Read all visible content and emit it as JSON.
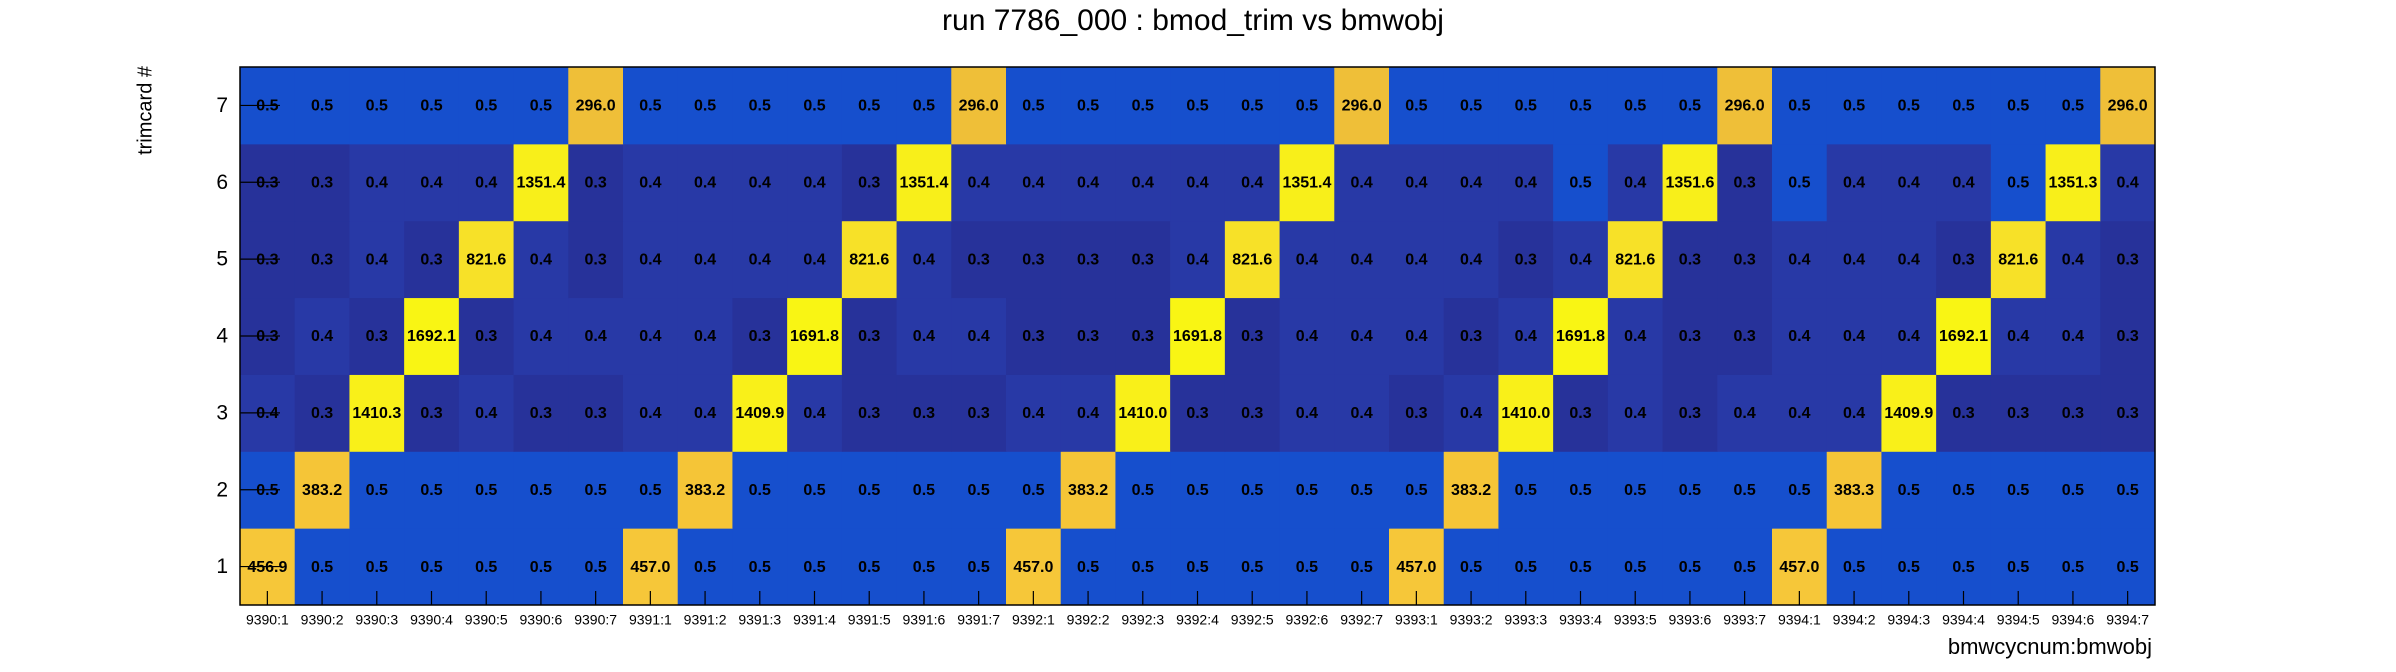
{
  "chart_data": {
    "type": "heatmap",
    "title": "run 7786_000 : bmod_trim vs bmwobj",
    "xlabel": "bmwcycnum:bmwobj",
    "ylabel": "trimcard #",
    "categories": [
      "9390:1",
      "9390:2",
      "9390:3",
      "9390:4",
      "9390:5",
      "9390:6",
      "9390:7",
      "9391:1",
      "9391:2",
      "9391:3",
      "9391:4",
      "9391:5",
      "9391:6",
      "9391:7",
      "9392:1",
      "9392:2",
      "9392:3",
      "9392:4",
      "9392:5",
      "9392:6",
      "9392:7",
      "9393:1",
      "9393:2",
      "9393:3",
      "9393:4",
      "9393:5",
      "9393:6",
      "9393:7",
      "9394:1",
      "9394:2",
      "9394:3",
      "9394:4",
      "9394:5",
      "9394:6",
      "9394:7"
    ],
    "y_categories": [
      1,
      2,
      3,
      4,
      5,
      6,
      7
    ],
    "values": [
      [
        456.9,
        0.5,
        0.5,
        0.5,
        0.5,
        0.5,
        0.5,
        457.0,
        0.5,
        0.5,
        0.5,
        0.5,
        0.5,
        0.5,
        457.0,
        0.5,
        0.5,
        0.5,
        0.5,
        0.5,
        0.5,
        457.0,
        0.5,
        0.5,
        0.5,
        0.5,
        0.5,
        0.5,
        457.0,
        0.5,
        0.5,
        0.5,
        0.5,
        0.5,
        0.5
      ],
      [
        0.5,
        383.2,
        0.5,
        0.5,
        0.5,
        0.5,
        0.5,
        0.5,
        383.2,
        0.5,
        0.5,
        0.5,
        0.5,
        0.5,
        0.5,
        383.2,
        0.5,
        0.5,
        0.5,
        0.5,
        0.5,
        0.5,
        383.2,
        0.5,
        0.5,
        0.5,
        0.5,
        0.5,
        0.5,
        383.3,
        0.5,
        0.5,
        0.5,
        0.5,
        0.5
      ],
      [
        0.4,
        0.3,
        1410.3,
        0.3,
        0.4,
        0.3,
        0.3,
        0.4,
        0.4,
        1409.9,
        0.4,
        0.3,
        0.3,
        0.3,
        0.4,
        0.4,
        1410.0,
        0.3,
        0.3,
        0.4,
        0.4,
        0.3,
        0.4,
        1410.0,
        0.3,
        0.4,
        0.3,
        0.4,
        0.4,
        0.4,
        1409.9,
        0.3,
        0.3,
        0.3,
        0.3
      ],
      [
        0.3,
        0.4,
        0.3,
        1692.1,
        0.3,
        0.4,
        0.4,
        0.4,
        0.4,
        0.3,
        1691.8,
        0.3,
        0.4,
        0.4,
        0.3,
        0.3,
        0.3,
        1691.8,
        0.3,
        0.4,
        0.4,
        0.4,
        0.3,
        0.4,
        1691.8,
        0.4,
        0.3,
        0.3,
        0.4,
        0.4,
        0.4,
        1692.1,
        0.4,
        0.4,
        0.3
      ],
      [
        0.3,
        0.3,
        0.4,
        0.3,
        821.6,
        0.4,
        0.3,
        0.4,
        0.4,
        0.4,
        0.4,
        821.6,
        0.4,
        0.3,
        0.3,
        0.3,
        0.3,
        0.4,
        821.6,
        0.4,
        0.4,
        0.4,
        0.4,
        0.3,
        0.4,
        821.6,
        0.3,
        0.3,
        0.4,
        0.4,
        0.4,
        0.3,
        821.6,
        0.4,
        0.3
      ],
      [
        0.3,
        0.3,
        0.4,
        0.4,
        0.4,
        1351.4,
        0.3,
        0.4,
        0.4,
        0.4,
        0.4,
        0.3,
        1351.4,
        0.4,
        0.4,
        0.4,
        0.4,
        0.4,
        0.4,
        1351.4,
        0.4,
        0.4,
        0.4,
        0.4,
        0.5,
        0.4,
        1351.6,
        0.3,
        0.5,
        0.4,
        0.4,
        0.4,
        0.5,
        1351.3,
        0.4
      ],
      [
        0.5,
        0.5,
        0.5,
        0.5,
        0.5,
        0.5,
        296.0,
        0.5,
        0.5,
        0.5,
        0.5,
        0.5,
        0.5,
        296.0,
        0.5,
        0.5,
        0.5,
        0.5,
        0.5,
        0.5,
        296.0,
        0.5,
        0.5,
        0.5,
        0.5,
        0.5,
        0.5,
        296.0,
        0.5,
        0.5,
        0.5,
        0.5,
        0.5,
        0.5,
        296.0
      ]
    ],
    "value_labels": [
      [
        "456.9",
        "0.5",
        "0.5",
        "0.5",
        "0.5",
        "0.5",
        "0.5",
        "457.0",
        "0.5",
        "0.5",
        "0.5",
        "0.5",
        "0.5",
        "0.5",
        "457.0",
        "0.5",
        "0.5",
        "0.5",
        "0.5",
        "0.5",
        "0.5",
        "457.0",
        "0.5",
        "0.5",
        "0.5",
        "0.5",
        "0.5",
        "0.5",
        "457.0",
        "0.5",
        "0.5",
        "0.5",
        "0.5",
        "0.5",
        "0.5"
      ],
      [
        "0.5",
        "383.2",
        "0.5",
        "0.5",
        "0.5",
        "0.5",
        "0.5",
        "0.5",
        "383.2",
        "0.5",
        "0.5",
        "0.5",
        "0.5",
        "0.5",
        "0.5",
        "383.2",
        "0.5",
        "0.5",
        "0.5",
        "0.5",
        "0.5",
        "0.5",
        "383.2",
        "0.5",
        "0.5",
        "0.5",
        "0.5",
        "0.5",
        "0.5",
        "383.3",
        "0.5",
        "0.5",
        "0.5",
        "0.5",
        "0.5"
      ],
      [
        "0.4",
        "0.3",
        "1410.3",
        "0.3",
        "0.4",
        "0.3",
        "0.3",
        "0.4",
        "0.4",
        "1409.9",
        "0.4",
        "0.3",
        "0.3",
        "0.3",
        "0.4",
        "0.4",
        "1410.0",
        "0.3",
        "0.3",
        "0.4",
        "0.4",
        "0.3",
        "0.4",
        "1410.0",
        "0.3",
        "0.4",
        "0.3",
        "0.4",
        "0.4",
        "0.4",
        "1409.9",
        "0.3",
        "0.3",
        "0.3",
        "0.3"
      ],
      [
        "0.3",
        "0.4",
        "0.3",
        "1692.1",
        "0.3",
        "0.4",
        "0.4",
        "0.4",
        "0.4",
        "0.3",
        "1691.8",
        "0.3",
        "0.4",
        "0.4",
        "0.3",
        "0.3",
        "0.3",
        "1691.8",
        "0.3",
        "0.4",
        "0.4",
        "0.4",
        "0.3",
        "0.4",
        "1691.8",
        "0.4",
        "0.3",
        "0.3",
        "0.4",
        "0.4",
        "0.4",
        "1692.1",
        "0.4",
        "0.4",
        "0.3"
      ],
      [
        "0.3",
        "0.3",
        "0.4",
        "0.3",
        "821.6",
        "0.4",
        "0.3",
        "0.4",
        "0.4",
        "0.4",
        "0.4",
        "821.6",
        "0.4",
        "0.3",
        "0.3",
        "0.3",
        "0.3",
        "0.4",
        "821.6",
        "0.4",
        "0.4",
        "0.4",
        "0.4",
        "0.3",
        "0.4",
        "821.6",
        "0.3",
        "0.3",
        "0.4",
        "0.4",
        "0.4",
        "0.3",
        "821.6",
        "0.4",
        "0.3"
      ],
      [
        "0.3",
        "0.3",
        "0.4",
        "0.4",
        "0.4",
        "1351.4",
        "0.3",
        "0.4",
        "0.4",
        "0.4",
        "0.4",
        "0.3",
        "1351.4",
        "0.4",
        "0.4",
        "0.4",
        "0.4",
        "0.4",
        "0.4",
        "1351.4",
        "0.4",
        "0.4",
        "0.4",
        "0.4",
        "0.5",
        "0.4",
        "1351.6",
        "0.3",
        "0.5",
        "0.4",
        "0.4",
        "0.4",
        "0.5",
        "1351.3",
        "0.4"
      ],
      [
        "0.5",
        "0.5",
        "0.5",
        "0.5",
        "0.5",
        "0.5",
        "296.0",
        "0.5",
        "0.5",
        "0.5",
        "0.5",
        "0.5",
        "0.5",
        "296.0",
        "0.5",
        "0.5",
        "0.5",
        "0.5",
        "0.5",
        "0.5",
        "296.0",
        "0.5",
        "0.5",
        "0.5",
        "0.5",
        "0.5",
        "0.5",
        "296.0",
        "0.5",
        "0.5",
        "0.5",
        "0.5",
        "0.5",
        "0.5",
        "296.0"
      ]
    ],
    "zlog": true
  }
}
